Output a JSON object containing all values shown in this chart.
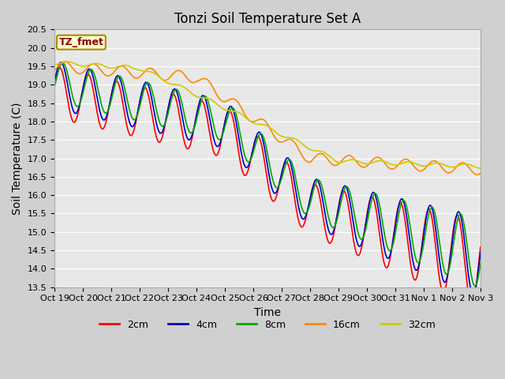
{
  "title": "Tonzi Soil Temperature Set A",
  "xlabel": "Time",
  "ylabel": "Soil Temperature (C)",
  "annotation": "TZ_fmet",
  "ylim": [
    13.5,
    20.5
  ],
  "xtick_labels": [
    "Oct 19",
    "Oct 20",
    "Oct 21",
    "Oct 22",
    "Oct 23",
    "Oct 24",
    "Oct 25",
    "Oct 26",
    "Oct 27",
    "Oct 28",
    "Oct 29",
    "Oct 30",
    "Oct 31",
    "Nov 1",
    "Nov 2",
    "Nov 3"
  ],
  "series": {
    "2cm": {
      "color": "#ff0000",
      "linewidth": 1.2
    },
    "4cm": {
      "color": "#0000cc",
      "linewidth": 1.2
    },
    "8cm": {
      "color": "#00aa00",
      "linewidth": 1.2
    },
    "16cm": {
      "color": "#ff8800",
      "linewidth": 1.2
    },
    "32cm": {
      "color": "#cccc00",
      "linewidth": 1.2
    }
  },
  "fig_background": "#d0d0d0",
  "ax_background": "#e8e8e8",
  "grid_color": "#ffffff",
  "title_fontsize": 12,
  "axis_fontsize": 10,
  "tick_fontsize": 8,
  "legend_fontsize": 9
}
